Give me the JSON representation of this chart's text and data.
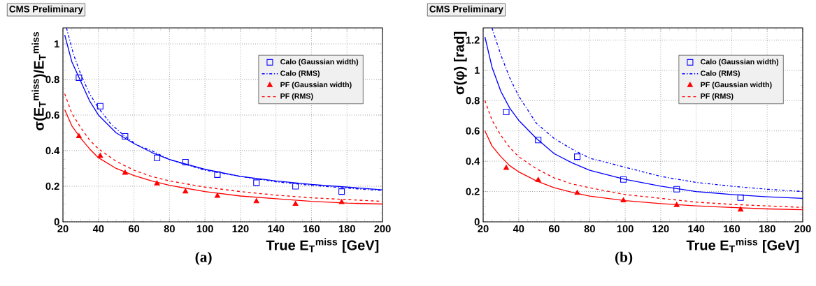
{
  "chart_data": [
    {
      "type": "scatter",
      "ylabel": "σ(E$_{T}$$^{miss}$)/E$_{T}$$^{miss}$",
      "xlabel": "True E$_{T}$$^{miss}$ [GeV]",
      "annotations": [
        "CMS Preliminary",
        "(a)"
      ],
      "xlim": [
        20,
        200
      ],
      "ylim": [
        0,
        1.09
      ],
      "xticks": [
        20,
        40,
        60,
        80,
        100,
        120,
        140,
        160,
        180,
        200
      ],
      "yticks": [
        0,
        0.2,
        0.4,
        0.6,
        0.8,
        1
      ],
      "grid": true,
      "legend": "top right",
      "series": [
        {
          "name": "Calo (Gaussian width)",
          "color": "#0000ff",
          "marker": "square",
          "x": [
            29,
            41,
            55,
            73,
            89,
            107,
            129,
            151,
            177
          ],
          "values": [
            0.81,
            0.65,
            0.48,
            0.36,
            0.335,
            0.265,
            0.22,
            0.2,
            0.17
          ]
        },
        {
          "type": "line",
          "name": "Calo (RMS)",
          "color": "#0000ff",
          "line_style": "dashdot",
          "x": [
            22,
            26,
            30,
            35,
            40,
            47,
            55,
            62,
            70,
            80,
            90,
            100,
            120,
            140,
            160,
            180,
            200
          ],
          "values": [
            1.09,
            0.94,
            0.83,
            0.72,
            0.64,
            0.55,
            0.48,
            0.43,
            0.4,
            0.35,
            0.32,
            0.29,
            0.255,
            0.225,
            0.205,
            0.19,
            0.175
          ]
        },
        {
          "name": "PF (Gaussian width)",
          "color": "#ff0000",
          "marker": "triangle",
          "x": [
            29,
            41,
            55,
            73,
            89,
            107,
            129,
            151,
            177
          ],
          "values": [
            0.48,
            0.37,
            0.275,
            0.215,
            0.17,
            0.145,
            0.115,
            0.1,
            0.11
          ]
        },
        {
          "type": "line",
          "name": "PF (RMS)",
          "color": "#ff0000",
          "line_style": "dashed",
          "x": [
            21,
            25,
            30,
            35,
            40,
            50,
            60,
            70,
            80,
            100,
            120,
            140,
            160,
            180,
            200
          ],
          "values": [
            0.72,
            0.61,
            0.53,
            0.46,
            0.41,
            0.34,
            0.29,
            0.255,
            0.23,
            0.195,
            0.17,
            0.15,
            0.135,
            0.125,
            0.115
          ]
        },
        {
          "type": "line",
          "color": "#0000ff",
          "line_style": "solid",
          "x": [
            21,
            25,
            30,
            35,
            40,
            50,
            60,
            70,
            80,
            100,
            120,
            140,
            160,
            180,
            200
          ],
          "values": [
            1.05,
            0.9,
            0.79,
            0.68,
            0.6,
            0.5,
            0.44,
            0.39,
            0.35,
            0.295,
            0.255,
            0.23,
            0.21,
            0.195,
            0.18
          ]
        },
        {
          "type": "line",
          "color": "#ff0000",
          "line_style": "solid",
          "x": [
            21,
            25,
            30,
            35,
            40,
            50,
            60,
            70,
            80,
            100,
            120,
            140,
            160,
            180,
            200
          ],
          "values": [
            0.63,
            0.54,
            0.47,
            0.41,
            0.36,
            0.3,
            0.26,
            0.23,
            0.205,
            0.17,
            0.145,
            0.13,
            0.115,
            0.105,
            0.1
          ]
        }
      ]
    },
    {
      "type": "scatter",
      "ylabel": "σ(φ) [rad]",
      "xlabel": "True E$_{T}$$^{miss}$ [GeV]",
      "annotations": [
        "CMS Preliminary",
        "(b)"
      ],
      "xlim": [
        20,
        200
      ],
      "ylim": [
        0,
        1.28
      ],
      "xticks": [
        20,
        40,
        60,
        80,
        100,
        120,
        140,
        160,
        180,
        200
      ],
      "yticks": [
        0,
        0.2,
        0.4,
        0.6,
        0.8,
        1,
        1.2
      ],
      "grid": true,
      "legend": "top right",
      "series": [
        {
          "name": "Calo (Gaussian width)",
          "color": "#0000ff",
          "marker": "square",
          "x": [
            33,
            51,
            73,
            99,
            129,
            165
          ],
          "values": [
            0.725,
            0.54,
            0.43,
            0.28,
            0.215,
            0.16
          ]
        },
        {
          "type": "line",
          "name": "Calo (RMS)",
          "color": "#0000ff",
          "line_style": "dashdot",
          "x": [
            25,
            30,
            35,
            40,
            50,
            60,
            70,
            80,
            100,
            120,
            140,
            160,
            180,
            200
          ],
          "values": [
            1.28,
            1.1,
            0.95,
            0.83,
            0.65,
            0.55,
            0.48,
            0.42,
            0.36,
            0.3,
            0.26,
            0.235,
            0.215,
            0.2
          ]
        },
        {
          "name": "PF (Gaussian width)",
          "color": "#ff0000",
          "marker": "triangle",
          "x": [
            33,
            51,
            73,
            99,
            129,
            165
          ],
          "values": [
            0.355,
            0.275,
            0.19,
            0.14,
            0.11,
            0.08
          ]
        },
        {
          "type": "line",
          "name": "PF (RMS)",
          "color": "#ff0000",
          "line_style": "dashed",
          "x": [
            21,
            25,
            30,
            35,
            40,
            50,
            60,
            70,
            80,
            100,
            120,
            140,
            160,
            180,
            200
          ],
          "values": [
            0.8,
            0.67,
            0.57,
            0.49,
            0.43,
            0.35,
            0.29,
            0.25,
            0.225,
            0.18,
            0.155,
            0.13,
            0.115,
            0.105,
            0.095
          ]
        },
        {
          "type": "line",
          "color": "#0000ff",
          "line_style": "solid",
          "x": [
            21,
            25,
            30,
            35,
            40,
            50,
            60,
            70,
            80,
            100,
            120,
            140,
            160,
            180,
            200
          ],
          "values": [
            1.22,
            1.02,
            0.86,
            0.75,
            0.67,
            0.55,
            0.45,
            0.39,
            0.34,
            0.28,
            0.235,
            0.2,
            0.18,
            0.165,
            0.155
          ]
        },
        {
          "type": "line",
          "color": "#ff0000",
          "line_style": "solid",
          "x": [
            21,
            25,
            30,
            35,
            40,
            50,
            60,
            70,
            80,
            100,
            120,
            140,
            160,
            180,
            200
          ],
          "values": [
            0.6,
            0.5,
            0.43,
            0.37,
            0.33,
            0.27,
            0.225,
            0.195,
            0.17,
            0.14,
            0.12,
            0.105,
            0.095,
            0.085,
            0.08
          ]
        }
      ]
    }
  ]
}
